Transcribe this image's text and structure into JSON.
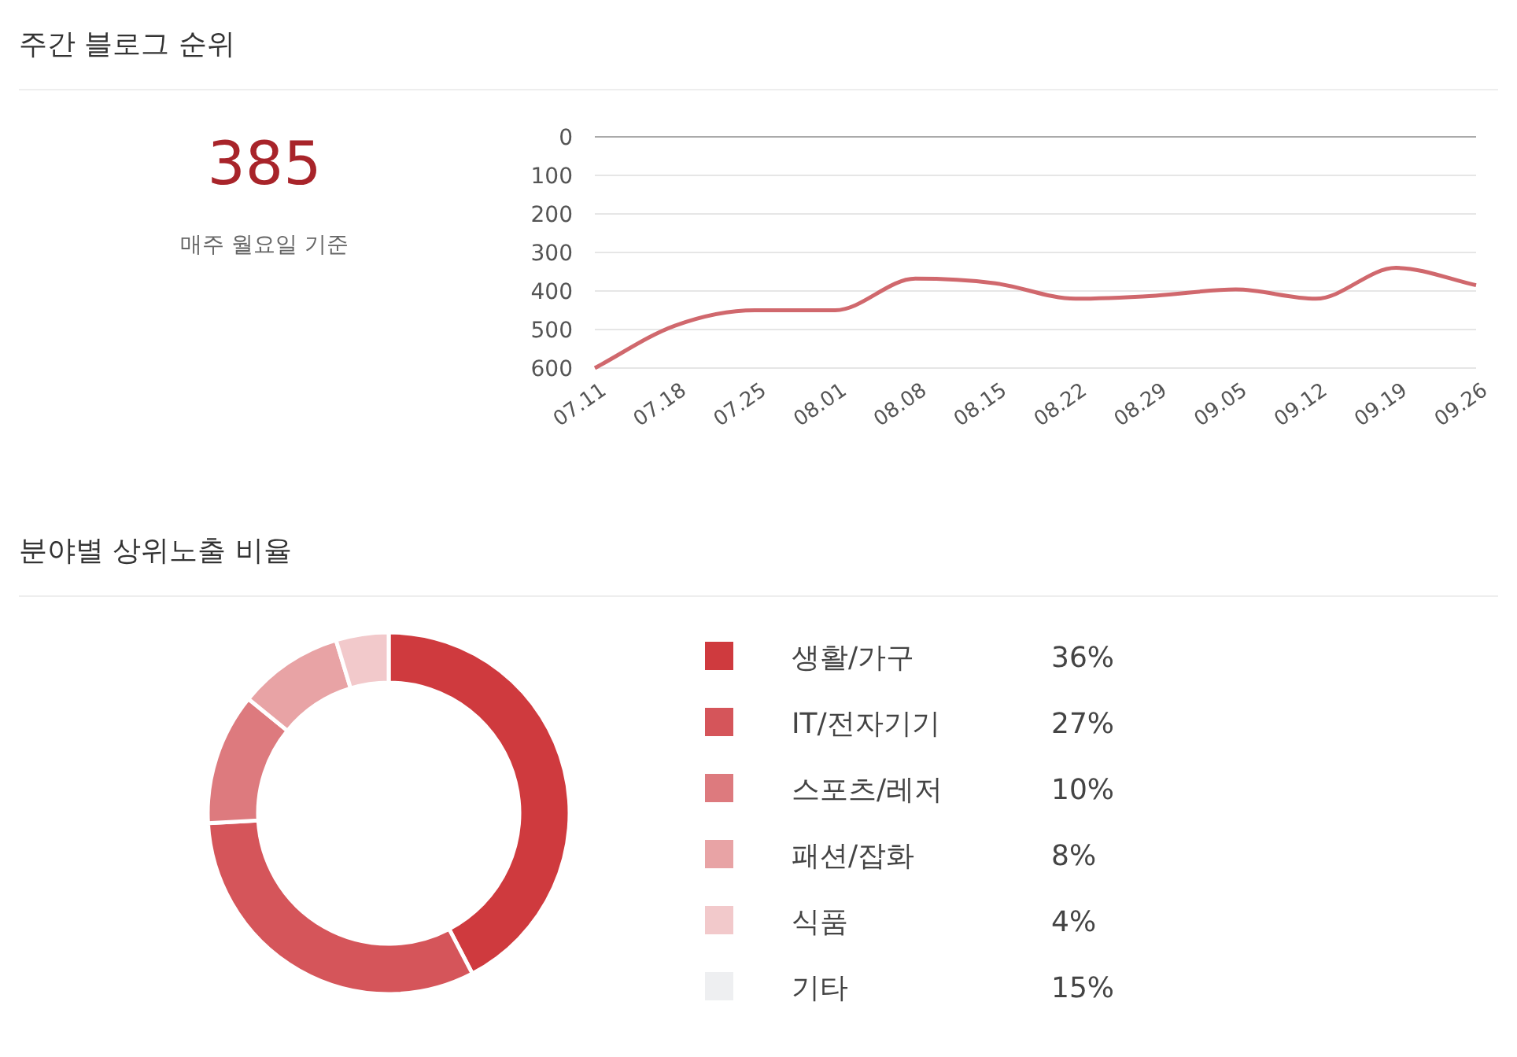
{
  "chart_data": [
    {
      "type": "other",
      "title": "주간 블로그 순위",
      "annotations": [
        "385",
        "매주 월요일 기준"
      ]
    },
    {
      "type": "line",
      "categories": [
        "07.11",
        "07.18",
        "07.25",
        "08.01",
        "08.08",
        "08.15",
        "08.22",
        "08.29",
        "09.05",
        "09.12",
        "09.19",
        "09.26"
      ],
      "series": [
        {
          "color": "#d0686d",
          "values": [
            600,
            490,
            450,
            450,
            368,
            380,
            420,
            412,
            396,
            420,
            340,
            385
          ]
        }
      ],
      "ylim": [
        600,
        0
      ],
      "yticks": [
        0,
        100,
        200,
        300,
        400,
        500,
        600
      ],
      "grid": "y",
      "marker": "none",
      "line_style": "solid"
    },
    {
      "type": "donut",
      "title": "분야별 상위노출 비율",
      "categories": [
        "생활/가구",
        "IT/전자기기",
        "스포츠/레저",
        "패션/잡화",
        "식품",
        "기타"
      ],
      "values": [
        36,
        27,
        10,
        8,
        4,
        null
      ],
      "colors": [
        "#cf3a3e",
        "#d5555a",
        "#dd7a7e",
        "#e8a3a5",
        "#f2c9cb",
        "#eeeff1"
      ],
      "value_labels": [
        "36%",
        "27%",
        "10%",
        "8%",
        "4%",
        "15%"
      ],
      "legend": "right"
    }
  ]
}
